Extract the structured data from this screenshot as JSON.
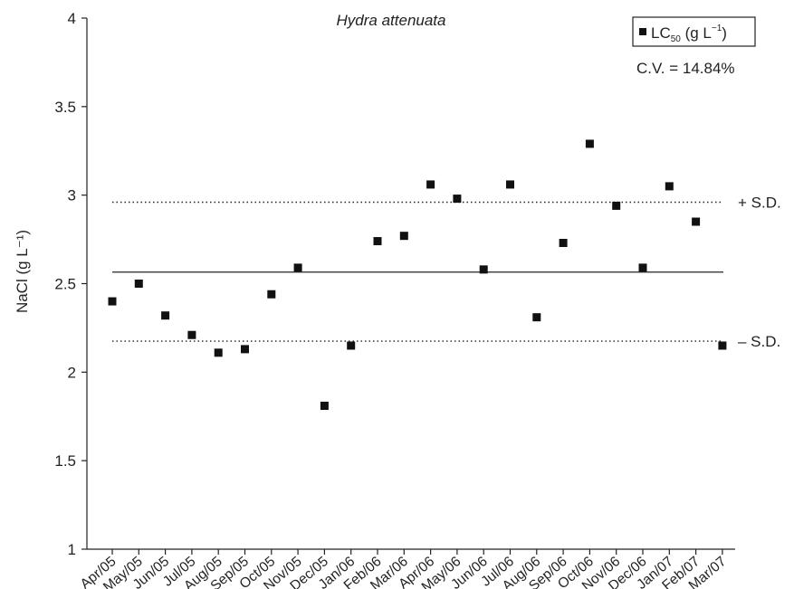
{
  "chart_data": {
    "type": "scatter",
    "title": "Hydra attenuata",
    "ylabel": "NaCl (g L⁻¹)",
    "xlabel": "",
    "ylim": [
      1,
      4
    ],
    "yticks": [
      "1",
      "1.5",
      "2",
      "2.5",
      "3",
      "3.5",
      "4"
    ],
    "categories": [
      "Apr/05",
      "May/05",
      "Jun/05",
      "Jul/05",
      "Aug/05",
      "Sep/05",
      "Oct/05",
      "Nov/05",
      "Dec/05",
      "Jan/06",
      "Feb/06",
      "Mar/06",
      "Apr/06",
      "May/06",
      "Jun/06",
      "Jul/06",
      "Aug/06",
      "Sep/06",
      "Oct/06",
      "Nov/06",
      "Dec/06",
      "Jan/07",
      "Feb/07",
      "Mar/07"
    ],
    "series": [
      {
        "name": "LC50 (g L⁻¹)",
        "values": [
          2.4,
          2.5,
          2.32,
          2.21,
          2.11,
          2.13,
          2.44,
          2.59,
          1.81,
          2.15,
          2.74,
          2.77,
          3.06,
          2.98,
          2.58,
          3.06,
          2.31,
          2.73,
          3.29,
          2.94,
          2.59,
          3.05,
          2.85,
          2.15
        ]
      }
    ],
    "reference_lines": [
      {
        "name": "mean",
        "value": 2.565,
        "style": "solid",
        "label": ""
      },
      {
        "name": "plus-sd",
        "value": 2.96,
        "style": "dotted",
        "label": "+ S.D."
      },
      {
        "name": "minus-sd",
        "value": 2.175,
        "style": "dotted",
        "label": "– S.D."
      }
    ],
    "legend": {
      "position": "top-right",
      "prefix": "LC",
      "subscript": "50",
      "suffix_open": " (g L",
      "superscript": "−1",
      "suffix_close": ")"
    },
    "annotation": "C.V. = 14.84%",
    "grid": false,
    "marker_color": "#111111"
  }
}
